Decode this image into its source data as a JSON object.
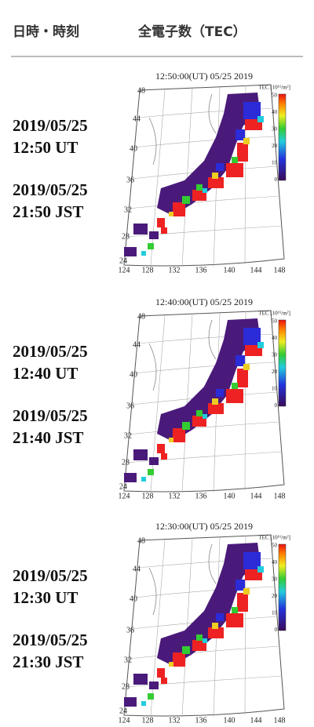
{
  "header": {
    "col1": "日時・時刻",
    "col2": "全電子数（TEC）"
  },
  "rows": [
    {
      "date_ut": "2019/05/25",
      "time_ut": "12:50 UT",
      "date_jst": "2019/05/25",
      "time_jst": "21:50 JST",
      "map_title": "12:50:00(UT)  05/25 2019"
    },
    {
      "date_ut": "2019/05/25",
      "time_ut": "12:40 UT",
      "date_jst": "2019/05/25",
      "time_jst": "21:40 JST",
      "map_title": "12:40:00(UT)  05/25 2019"
    },
    {
      "date_ut": "2019/05/25",
      "time_ut": "12:30 UT",
      "date_jst": "2019/05/25",
      "time_jst": "21:30 JST",
      "map_title": "12:30:00(UT)  05/25 2019"
    }
  ],
  "map_axes": {
    "colorbar_label": "TEC [10¹⁶/m²]",
    "colorbar_ticks": [
      "50",
      "40",
      "30",
      "20",
      "10",
      "0"
    ],
    "lat_labels": [
      "48",
      "44",
      "40",
      "36",
      "32",
      "28",
      "24"
    ],
    "lon_labels": [
      "124",
      "128",
      "132",
      "136",
      "140",
      "144",
      "148"
    ]
  }
}
